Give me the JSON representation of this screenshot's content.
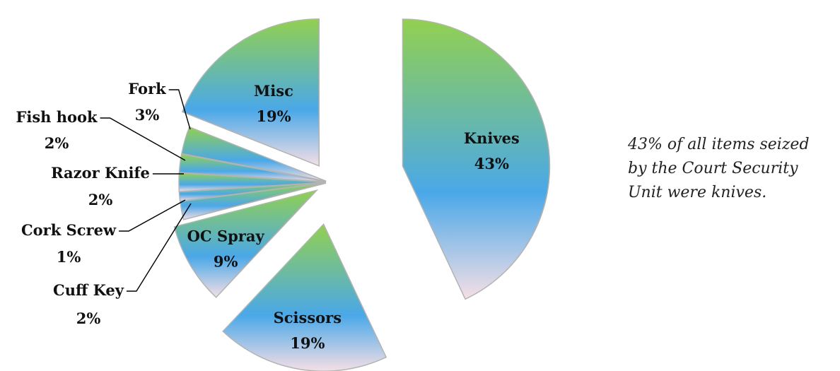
{
  "chart_data": {
    "type": "pie",
    "title": "",
    "exploded": true,
    "categories": [
      "Knives",
      "Scissors",
      "OC Spray",
      "Cuff Key",
      "Cork Screw",
      "Razor Knife",
      "Fish hook",
      "Fork",
      "Misc"
    ],
    "values": [
      43,
      19,
      9,
      2,
      1,
      2,
      2,
      3,
      19
    ],
    "value_labels": [
      "43%",
      "19%",
      "9%",
      "2%",
      "1%",
      "2%",
      "2%",
      "3%",
      "19%"
    ],
    "gradient": {
      "top": "#92d050",
      "middle": "#4aa8e8",
      "bottom": "#f5dfe6"
    },
    "slice_border": "#b3b3b3"
  },
  "note": {
    "lines": [
      "43% of all items seized",
      "by the Court Security",
      "Unit were knives."
    ]
  }
}
